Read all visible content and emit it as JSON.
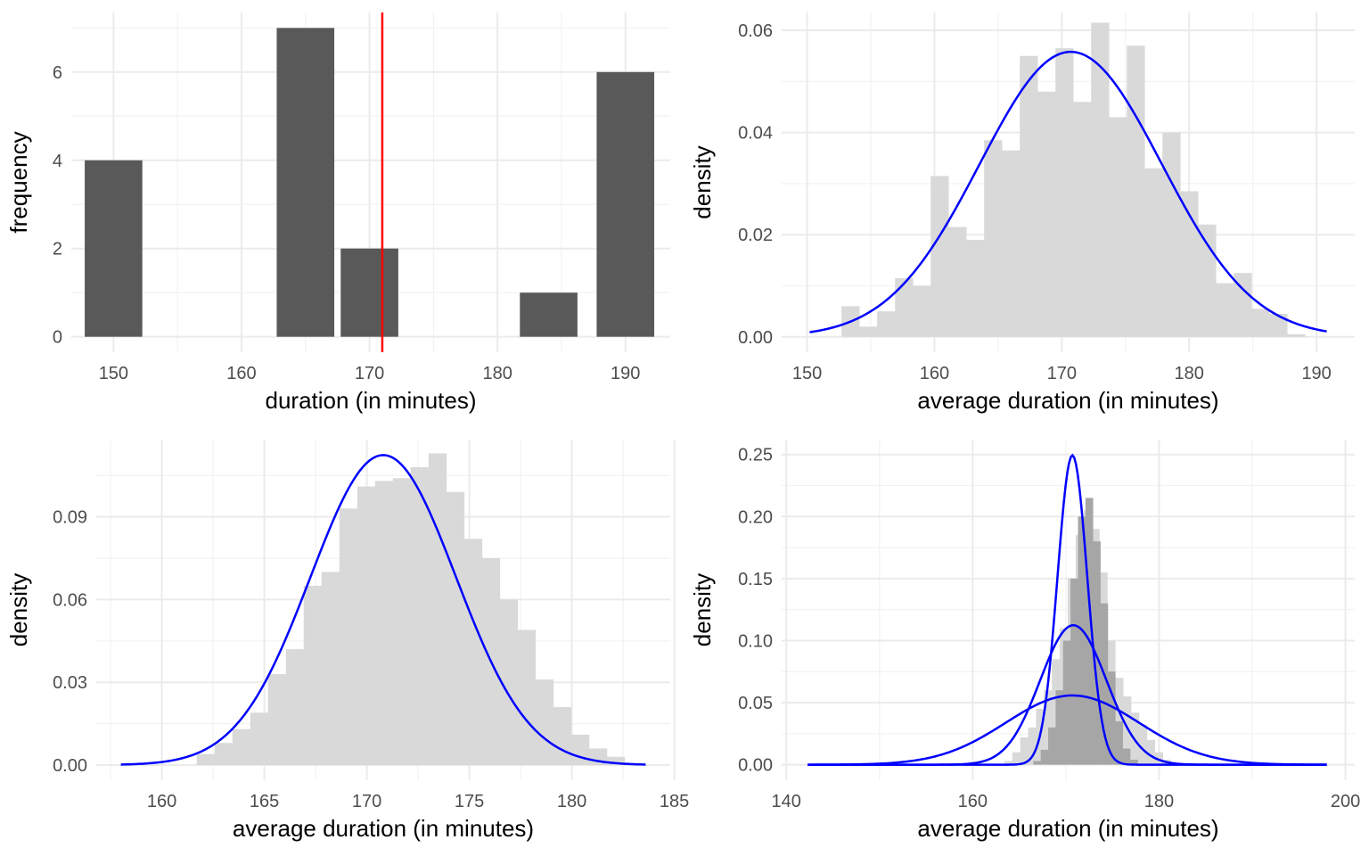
{
  "colors": {
    "bar_dark": "#595959",
    "hist_light": "#d9d9d9",
    "hist_dark": "#a6a6a6",
    "curve": "#0000ff",
    "vline": "#ff0000"
  },
  "chart_data": [
    {
      "id": "p1",
      "type": "bar",
      "xlabel": "duration (in minutes)",
      "ylabel": "frequency",
      "xlim": [
        146.7,
        193.5
      ],
      "ylim": [
        -0.35,
        7.35
      ],
      "xticks": [
        150,
        160,
        170,
        180,
        190
      ],
      "yticks": [
        0,
        2,
        4,
        6
      ],
      "bars": [
        {
          "x": 150,
          "y": 4
        },
        {
          "x": 165,
          "y": 7
        },
        {
          "x": 170,
          "y": 2
        },
        {
          "x": 184,
          "y": 1
        },
        {
          "x": 190,
          "y": 6
        }
      ],
      "bar_width": 4.5,
      "vline": 171
    },
    {
      "id": "p2",
      "type": "area",
      "xlabel": "average duration (in minutes)",
      "ylabel": "density",
      "xlim": [
        148,
        193
      ],
      "ylim": [
        -0.003,
        0.0635
      ],
      "xticks": [
        150,
        160,
        170,
        180,
        190
      ],
      "yticks": [
        0.0,
        0.02,
        0.04,
        0.06
      ],
      "hist_start": 152.7,
      "hist_binwidth": 1.4,
      "hist": [
        0.006,
        0.002,
        0.005,
        0.0115,
        0.01,
        0.0315,
        0.0215,
        0.019,
        0.0385,
        0.0365,
        0.055,
        0.048,
        0.0565,
        0.046,
        0.0615,
        0.043,
        0.057,
        0.033,
        0.04,
        0.0285,
        0.022,
        0.0105,
        0.0125,
        0.0055,
        0.0045,
        0.0005
      ],
      "normal": [
        {
          "mean": 170.7,
          "sd": 7.15,
          "xmin": 150.2,
          "xmax": 190.8
        }
      ]
    },
    {
      "id": "p3",
      "type": "area",
      "xlabel": "average duration (in minutes)",
      "ylabel": "density",
      "xlim": [
        156.8,
        184.8
      ],
      "ylim": [
        -0.0055,
        0.118
      ],
      "xticks": [
        160,
        165,
        170,
        175,
        180,
        185
      ],
      "yticks": [
        0.0,
        0.03,
        0.06,
        0.09
      ],
      "hist_start": 161.7,
      "hist_binwidth": 0.87,
      "hist": [
        0.004,
        0.008,
        0.013,
        0.019,
        0.033,
        0.042,
        0.065,
        0.07,
        0.093,
        0.101,
        0.103,
        0.104,
        0.108,
        0.113,
        0.099,
        0.082,
        0.075,
        0.06,
        0.049,
        0.031,
        0.021,
        0.011,
        0.006,
        0.003
      ],
      "normal": [
        {
          "mean": 170.8,
          "sd": 3.55,
          "xmin": 158.0,
          "xmax": 183.6
        }
      ]
    },
    {
      "id": "p4",
      "type": "area",
      "xlabel": "average duration (in minutes)",
      "ylabel": "density",
      "xlim": [
        139.5,
        201
      ],
      "ylim": [
        -0.0125,
        0.262
      ],
      "xticks": [
        140,
        160,
        180,
        200
      ],
      "yticks": [
        0.0,
        0.05,
        0.1,
        0.15,
        0.2,
        0.25
      ],
      "hist_light_start": 163.4,
      "hist_light_binwidth": 0.85,
      "hist_light": [
        0.003,
        0.01,
        0.022,
        0.03,
        0.045,
        0.06,
        0.085,
        0.11,
        0.15,
        0.185,
        0.205,
        0.19,
        0.155,
        0.1,
        0.07,
        0.055,
        0.042,
        0.032,
        0.02,
        0.01,
        0.004
      ],
      "hist_dark_start": 166.5,
      "hist_dark_binwidth": 0.8,
      "hist_dark": [
        0.003,
        0.012,
        0.03,
        0.06,
        0.1,
        0.15,
        0.2,
        0.215,
        0.18,
        0.13,
        0.075,
        0.035,
        0.013,
        0.004
      ],
      "normal": [
        {
          "mean": 170.7,
          "sd": 7.15,
          "xmin": 142.3,
          "xmax": 198.0
        },
        {
          "mean": 170.8,
          "sd": 3.55,
          "xmin": 142.3,
          "xmax": 198.0
        },
        {
          "mean": 170.7,
          "sd": 1.6,
          "xmin": 142.3,
          "xmax": 198.0
        }
      ]
    }
  ]
}
